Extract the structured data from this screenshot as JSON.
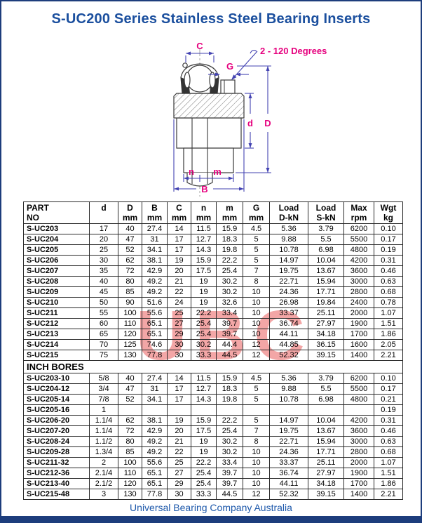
{
  "title": "S-UC200 Series Stainless Steel Bearing Inserts",
  "footer": "Universal Bearing Company Australia",
  "watermark": "UBC",
  "colors": {
    "frame_navy": "#1d3d7c",
    "title_blue": "#1b4f9e",
    "footer_blue": "#1e59ab",
    "dimension_line_blue": "#4343b2",
    "dimension_label_magenta": "#e6007e",
    "watermark_pink": "#f3a6a6",
    "table_border": "#2a2a2a"
  },
  "diagram": {
    "labels": {
      "c": "C",
      "g": "G",
      "d_small": "d",
      "d_big": "D",
      "n": "n",
      "m": "m",
      "b": "B",
      "angle": "2 - 120 Degrees"
    }
  },
  "table": {
    "header_line1": [
      "PART",
      "d",
      "D",
      "B",
      "C",
      "n",
      "m",
      "G",
      "Load",
      "Load",
      "Max",
      "Wgt"
    ],
    "header_line2": [
      "NO",
      "",
      "mm",
      "mm",
      "mm",
      "mm",
      "mm",
      "mm",
      "D-kN",
      "S-kN",
      "rpm",
      "kg"
    ],
    "metric_rows": [
      [
        "S-UC203",
        "17",
        "40",
        "27.4",
        "14",
        "11.5",
        "15.9",
        "4.5",
        "5.36",
        "3.79",
        "6200",
        "0.10"
      ],
      [
        "S-UC204",
        "20",
        "47",
        "31",
        "17",
        "12.7",
        "18.3",
        "5",
        "9.88",
        "5.5",
        "5500",
        "0.17"
      ],
      [
        "S-UC205",
        "25",
        "52",
        "34.1",
        "17",
        "14.3",
        "19.8",
        "5",
        "10.78",
        "6.98",
        "4800",
        "0.19"
      ],
      [
        "S-UC206",
        "30",
        "62",
        "38.1",
        "19",
        "15.9",
        "22.2",
        "5",
        "14.97",
        "10.04",
        "4200",
        "0.31"
      ],
      [
        "S-UC207",
        "35",
        "72",
        "42.9",
        "20",
        "17.5",
        "25.4",
        "7",
        "19.75",
        "13.67",
        "3600",
        "0.46"
      ],
      [
        "S-UC208",
        "40",
        "80",
        "49.2",
        "21",
        "19",
        "30.2",
        "8",
        "22.71",
        "15.94",
        "3000",
        "0.63"
      ],
      [
        "S-UC209",
        "45",
        "85",
        "49.2",
        "22",
        "19",
        "30.2",
        "10",
        "24.36",
        "17.71",
        "2800",
        "0.68"
      ],
      [
        "S-UC210",
        "50",
        "90",
        "51.6",
        "24",
        "19",
        "32.6",
        "10",
        "26.98",
        "19.84",
        "2400",
        "0.78"
      ],
      [
        "S-UC211",
        "55",
        "100",
        "55.6",
        "25",
        "22.2",
        "33.4",
        "10",
        "33.37",
        "25.11",
        "2000",
        "1.07"
      ],
      [
        "S-UC212",
        "60",
        "110",
        "65.1",
        "27",
        "25.4",
        "39.7",
        "10",
        "36.74",
        "27.97",
        "1900",
        "1.51"
      ],
      [
        "S-UC213",
        "65",
        "120",
        "65.1",
        "29",
        "25.4",
        "39.7",
        "10",
        "44.11",
        "34.18",
        "1700",
        "1.86"
      ],
      [
        "S-UC214",
        "70",
        "125",
        "74.6",
        "30",
        "30.2",
        "44.4",
        "12",
        "44.85",
        "36.15",
        "1600",
        "2.05"
      ],
      [
        "S-UC215",
        "75",
        "130",
        "77.8",
        "30",
        "33.3",
        "44.5",
        "12",
        "52.32",
        "39.15",
        "1400",
        "2.21"
      ]
    ],
    "inch_section_label": "INCH BORES",
    "inch_rows": [
      [
        "S-UC203-10",
        "5/8",
        "40",
        "27.4",
        "14",
        "11.5",
        "15.9",
        "4.5",
        "5.36",
        "3.79",
        "6200",
        "0.10"
      ],
      [
        "S-UC204-12",
        "3/4",
        "47",
        "31",
        "17",
        "12.7",
        "18.3",
        "5",
        "9.88",
        "5.5",
        "5500",
        "0.17"
      ],
      [
        "S-UC205-14",
        "7/8",
        "52",
        "34.1",
        "17",
        "14.3",
        "19.8",
        "5",
        "10.78",
        "6.98",
        "4800",
        "0.21"
      ],
      [
        "S-UC205-16",
        "1",
        "",
        "",
        "",
        "",
        "",
        "",
        "",
        "",
        "",
        "0.19"
      ],
      [
        "S-UC206-20",
        "1.1/4",
        "62",
        "38.1",
        "19",
        "15.9",
        "22.2",
        "5",
        "14.97",
        "10.04",
        "4200",
        "0.31"
      ],
      [
        "S-UC207-20",
        "1.1/4",
        "72",
        "42.9",
        "20",
        "17.5",
        "25.4",
        "7",
        "19.75",
        "13.67",
        "3600",
        "0.46"
      ],
      [
        "S-UC208-24",
        "1.1/2",
        "80",
        "49.2",
        "21",
        "19",
        "30.2",
        "8",
        "22.71",
        "15.94",
        "3000",
        "0.63"
      ],
      [
        "S-UC209-28",
        "1.3/4",
        "85",
        "49.2",
        "22",
        "19",
        "30.2",
        "10",
        "24.36",
        "17.71",
        "2800",
        "0.68"
      ],
      [
        "S-UC211-32",
        "2",
        "100",
        "55.6",
        "25",
        "22.2",
        "33.4",
        "10",
        "33.37",
        "25.11",
        "2000",
        "1.07"
      ],
      [
        "S-UC212-36",
        "2.1/4",
        "110",
        "65.1",
        "27",
        "25.4",
        "39.7",
        "10",
        "36.74",
        "27.97",
        "1900",
        "1.51"
      ],
      [
        "S-UC213-40",
        "2.1/2",
        "120",
        "65.1",
        "29",
        "25.4",
        "39.7",
        "10",
        "44.11",
        "34.18",
        "1700",
        "1.86"
      ],
      [
        "S-UC215-48",
        "3",
        "130",
        "77.8",
        "30",
        "33.3",
        "44.5",
        "12",
        "52.32",
        "39.15",
        "1400",
        "2.21"
      ]
    ]
  }
}
